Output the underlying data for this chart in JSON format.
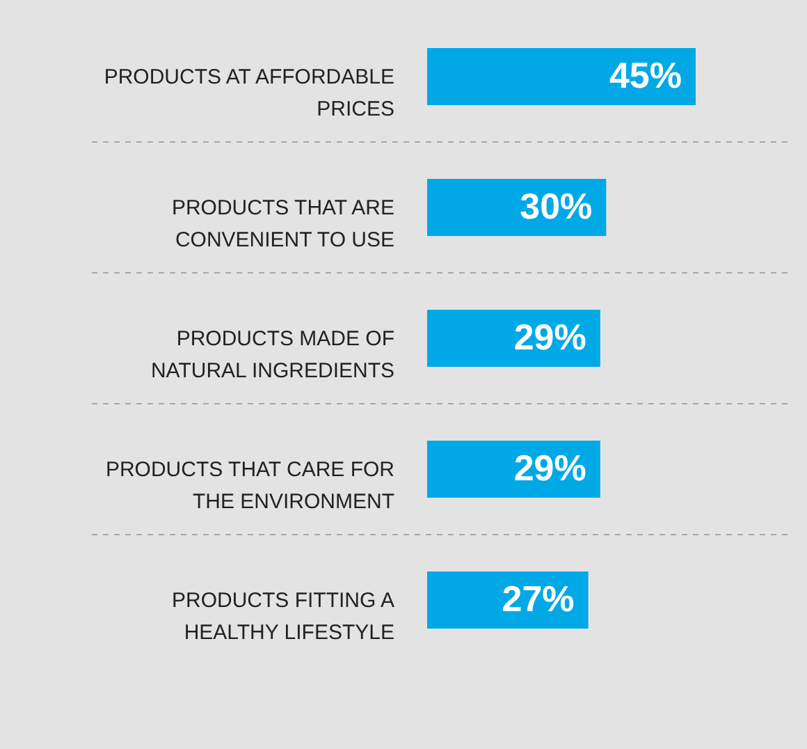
{
  "chart_data": {
    "type": "bar",
    "orientation": "horizontal",
    "categories": [
      "PRODUCTS AT AFFORDABLE PRICES",
      "PRODUCTS THAT ARE CONVENIENT TO USE",
      "PRODUCTS MADE OF NATURAL INGREDIENTS",
      "PRODUCTS THAT CARE FOR THE ENVIRONMENT",
      "PRODUCTS FITTING A HEALTHY LIFESTYLE"
    ],
    "values": [
      45,
      30,
      29,
      29,
      27
    ],
    "value_labels": [
      "45%",
      "30%",
      "29%",
      "29%",
      "27%"
    ],
    "color": "#00a9e6",
    "grid": "y",
    "tick_labels": "y"
  }
}
